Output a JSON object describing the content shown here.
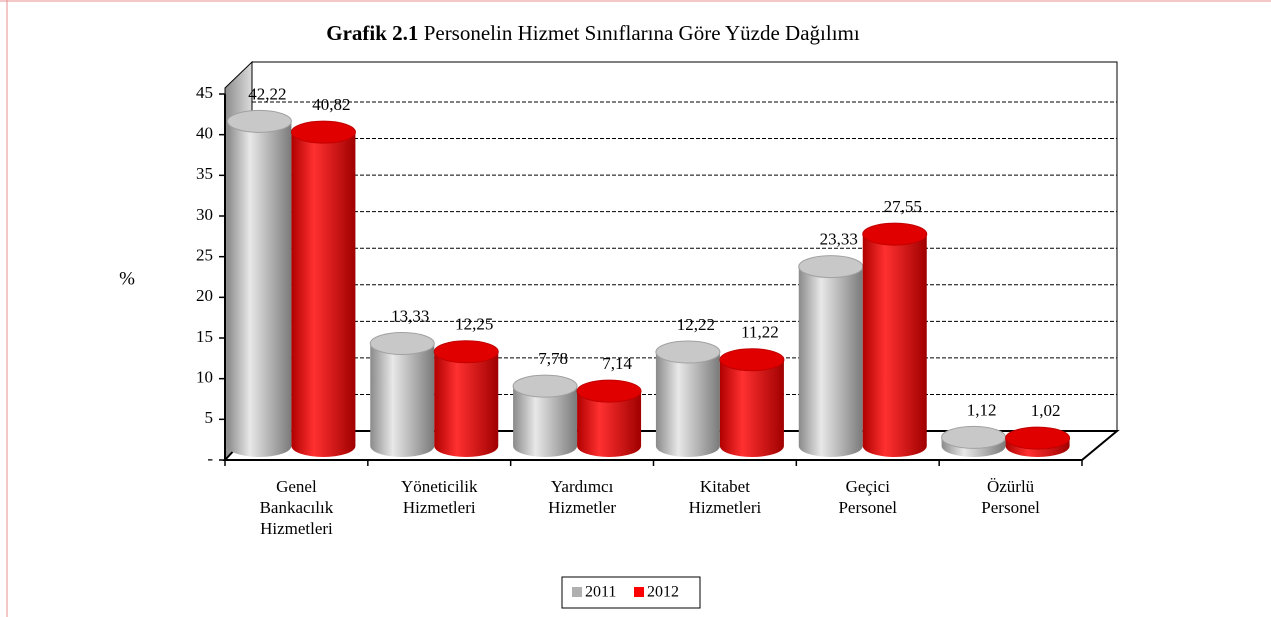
{
  "chart_data": {
    "type": "bar3d",
    "title_label": "Grafik 2.1",
    "title": "Personelin Hizmet Sınıflarına Göre Yüzde Dağılımı",
    "ylabel": "%",
    "categories": [
      "Genel Bankacılık Hizmetleri",
      "Yöneticilik Hizmetleri",
      "Yardımcı Hizmetler",
      "Kitabet Hizmetleri",
      "Geçici Personel",
      "Özürlü Personel"
    ],
    "series": [
      {
        "name": "2011",
        "color": "#b0b0b0",
        "values": [
          42.22,
          13.33,
          7.78,
          12.22,
          23.33,
          1.12
        ],
        "value_labels": [
          "42,22",
          "13,33",
          "7,78",
          "12,22",
          "23,33",
          "1,12"
        ]
      },
      {
        "name": "2012",
        "color": "#ff0000",
        "values": [
          40.82,
          12.25,
          7.14,
          11.22,
          27.55,
          1.02
        ],
        "value_labels": [
          "40,82",
          "12,25",
          "7,14",
          "11,22",
          "27,55",
          "1,02"
        ]
      }
    ],
    "ylim": [
      0,
      45
    ],
    "yticks": [
      {
        "value": 0,
        "label": "-"
      },
      5,
      10,
      15,
      20,
      25,
      30,
      35,
      40,
      45
    ],
    "grid": true,
    "legend": "bottom"
  }
}
